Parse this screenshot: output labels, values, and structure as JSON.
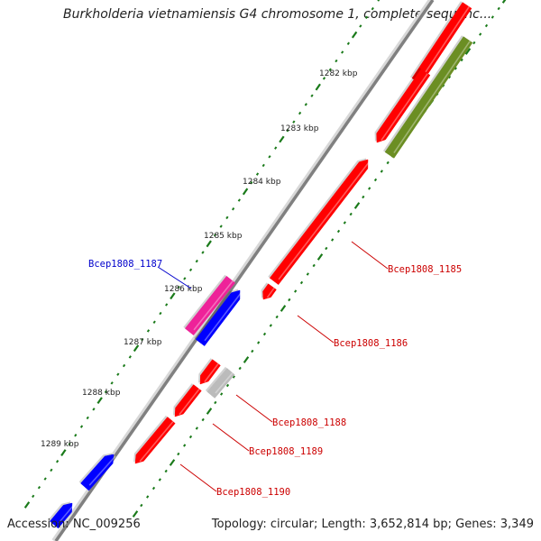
{
  "title": "Burkholderia vietnamiensis G4 chromosome 1, complete sequenc...",
  "footer": {
    "accession": "Accession: NC_009256",
    "summary": "Topology: circular; Length: 3,652,814 bp; Genes: 3,349"
  },
  "colors": {
    "backbone": "#808080",
    "tick_ring": "#1a7a1a",
    "gene_forward": "#ff0000",
    "gene_reverse": "#0000ff",
    "gene_pink": "#ee2299",
    "gene_gray": "#bbbbbb",
    "gene_olive": "#6b8e23",
    "label_forward": "#cc0000",
    "label_reverse": "#0000cc"
  },
  "kbp_labels": [
    "1282 kbp",
    "1283 kbp",
    "1284 kbp",
    "1285 kbp",
    "1286 kbp",
    "1287 kbp",
    "1288 kbp",
    "1289 kbp"
  ],
  "gene_labels": [
    {
      "id": "Bcep1808_1185",
      "strand": "forward"
    },
    {
      "id": "Bcep1808_1186",
      "strand": "forward"
    },
    {
      "id": "Bcep1808_1187",
      "strand": "reverse"
    },
    {
      "id": "Bcep1808_1188",
      "strand": "forward"
    },
    {
      "id": "Bcep1808_1189",
      "strand": "forward"
    },
    {
      "id": "Bcep1808_1190",
      "strand": "forward"
    }
  ]
}
